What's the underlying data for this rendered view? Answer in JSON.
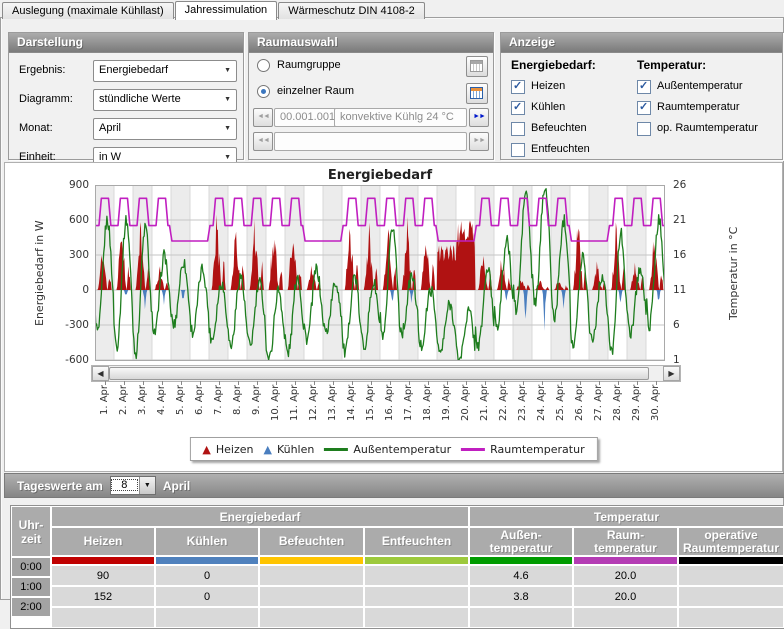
{
  "tabs": [
    {
      "label": "Auslegung (maximale Kühllast)",
      "active": false
    },
    {
      "label": "Jahressimulation",
      "active": true
    },
    {
      "label": "Wärmeschutz DIN 4108-2",
      "active": false
    }
  ],
  "panels": {
    "darstellung": {
      "title": "Darstellung",
      "fields": [
        {
          "label": "Ergebnis:",
          "value": "Energiebedarf"
        },
        {
          "label": "Diagramm:",
          "value": "stündliche Werte"
        },
        {
          "label": "Monat:",
          "value": "April"
        },
        {
          "label": "Einheit:",
          "value": "in W"
        }
      ]
    },
    "raumauswahl": {
      "title": "Raumauswahl",
      "radios": [
        {
          "label": "Raumgruppe",
          "selected": false
        },
        {
          "label": "einzelner Raum",
          "selected": true
        }
      ],
      "room_code": "00.001.001",
      "room_desc": "konvektive Kühlg 24 °C",
      "prev_arrows": "◄◄",
      "next_arrows": "►►"
    },
    "anzeige": {
      "title": "Anzeige",
      "columns": [
        {
          "header": "Energiebedarf:",
          "items": [
            {
              "label": "Heizen",
              "checked": true
            },
            {
              "label": "Kühlen",
              "checked": true
            },
            {
              "label": "Befeuchten",
              "checked": false
            },
            {
              "label": "Entfeuchten",
              "checked": false
            }
          ]
        },
        {
          "header": "Temperatur:",
          "items": [
            {
              "label": "Außentemperatur",
              "checked": true
            },
            {
              "label": "Raumtemperatur",
              "checked": true
            },
            {
              "label": "op. Raumtemperatur",
              "checked": false
            }
          ]
        }
      ]
    }
  },
  "chart_data": {
    "type": "area",
    "title": "Energiebedarf",
    "ylabel_left": "Energiebedarf in W",
    "ylabel_right": "Temperatur in °C",
    "ylim_left": [
      -600,
      900
    ],
    "ylim_right": [
      1,
      26
    ],
    "yticks_left": [
      900,
      600,
      300,
      0,
      -300,
      -600
    ],
    "yticks_right": [
      26,
      21,
      16,
      11,
      6,
      1
    ],
    "x_categories": [
      "1. Apr",
      "2. Apr",
      "3. Apr",
      "4. Apr",
      "5. Apr",
      "6. Apr",
      "7. Apr",
      "8. Apr",
      "9. Apr",
      "10. Apr",
      "11. Apr",
      "12. Apr",
      "13. Apr",
      "14. Apr",
      "15. Apr",
      "16. Apr",
      "17. Apr",
      "18. Apr",
      "19. Apr",
      "20. Apr",
      "21. Apr",
      "22. Apr",
      "23. Apr",
      "24. Apr",
      "25. Apr",
      "26. Apr",
      "27. Apr",
      "28. Apr",
      "29. Apr",
      "30. Apr"
    ],
    "legend": [
      {
        "label": "Heizen",
        "marker": "triangle",
        "color": "#B01212"
      },
      {
        "label": "Kühlen",
        "marker": "triangle",
        "color": "#4A7EBF"
      },
      {
        "label": "Außentemperatur",
        "marker": "line",
        "color": "#1E7D1E"
      },
      {
        "label": "Raumtemperatur",
        "marker": "line",
        "color": "#C01FC0"
      }
    ],
    "series": [
      {
        "name": "Heizen",
        "type": "area",
        "unit": "W",
        "color": "#B01212",
        "daily_peak_W": [
          420,
          700,
          660,
          260,
          0,
          0,
          760,
          700,
          690,
          720,
          700,
          280,
          0,
          770,
          700,
          650,
          700,
          660,
          520,
          800,
          430,
          380,
          150,
          90,
          120,
          690,
          280,
          720,
          340,
          660
        ],
        "all_day_days": [
          19,
          20
        ]
      },
      {
        "name": "Kühlen",
        "type": "area",
        "unit": "W",
        "color": "#4A7EBF",
        "daily_peak_W": [
          0,
          90,
          170,
          150,
          120,
          0,
          0,
          0,
          0,
          0,
          0,
          0,
          0,
          0,
          0,
          130,
          150,
          0,
          0,
          0,
          0,
          110,
          300,
          440,
          240,
          0,
          0,
          130,
          0,
          140
        ]
      },
      {
        "name": "Außentemperatur",
        "type": "line",
        "unit": "°C",
        "color": "#1E7D1E",
        "daily_min_C": [
          5,
          3,
          2,
          5,
          6,
          5,
          4,
          3,
          3,
          1,
          2,
          4,
          5,
          2,
          3,
          4,
          5,
          3,
          2,
          1,
          3,
          6,
          8,
          9,
          7,
          3,
          4,
          2,
          5,
          6
        ],
        "daily_max_C": [
          21,
          21,
          20,
          16,
          15,
          14,
          12,
          13,
          12,
          11,
          13,
          14,
          12,
          13,
          12,
          20,
          13,
          11,
          9,
          8,
          14,
          18,
          25,
          26,
          21,
          16,
          13,
          19,
          14,
          21
        ]
      },
      {
        "name": "Raumtemperatur",
        "type": "line",
        "unit": "°C",
        "color": "#C01FC0",
        "day_setpoint_C": 24.1,
        "night_setback_C": 20.2,
        "weekend_setback_C": 18.0,
        "day_hours": [
          7,
          19
        ],
        "weekend_days": [
          5,
          6,
          12,
          13,
          19,
          20,
          26,
          27
        ]
      }
    ],
    "grid": true,
    "legend_position": "bottom",
    "scrollbar": true
  },
  "tageswerte": {
    "prefix": "Tageswerte am",
    "day": "8",
    "suffix": "April"
  },
  "table": {
    "time_header_lines": [
      "Uhr-",
      "zeit"
    ],
    "groups": [
      {
        "label": "Energiebedarf",
        "span": 4
      },
      {
        "label": "Temperatur",
        "span": 3
      }
    ],
    "columns": [
      {
        "lines": [
          "Heizen"
        ],
        "color": "#C00000"
      },
      {
        "lines": [
          "Kühlen"
        ],
        "color": "#4F81BD"
      },
      {
        "lines": [
          "Befeuchten"
        ],
        "color": "#FFC400"
      },
      {
        "lines": [
          "Entfeuchten"
        ],
        "color": "#9DC93C"
      },
      {
        "lines": [
          "Außen-",
          "temperatur"
        ],
        "color": "#009B00"
      },
      {
        "lines": [
          "Raum-",
          "temperatur"
        ],
        "color": "#B43CB4"
      },
      {
        "lines": [
          "operative",
          "Raumtemperatur"
        ],
        "color": "#000000"
      }
    ],
    "rows": [
      {
        "time": "0:00",
        "values": [
          "90",
          "0",
          "",
          "",
          "4.6",
          "20.0",
          ""
        ]
      },
      {
        "time": "1:00",
        "values": [
          "152",
          "0",
          "",
          "",
          "3.8",
          "20.0",
          ""
        ]
      },
      {
        "time": "2:00",
        "values": [
          "",
          "",
          "",
          "",
          "",
          "",
          ""
        ]
      }
    ]
  }
}
